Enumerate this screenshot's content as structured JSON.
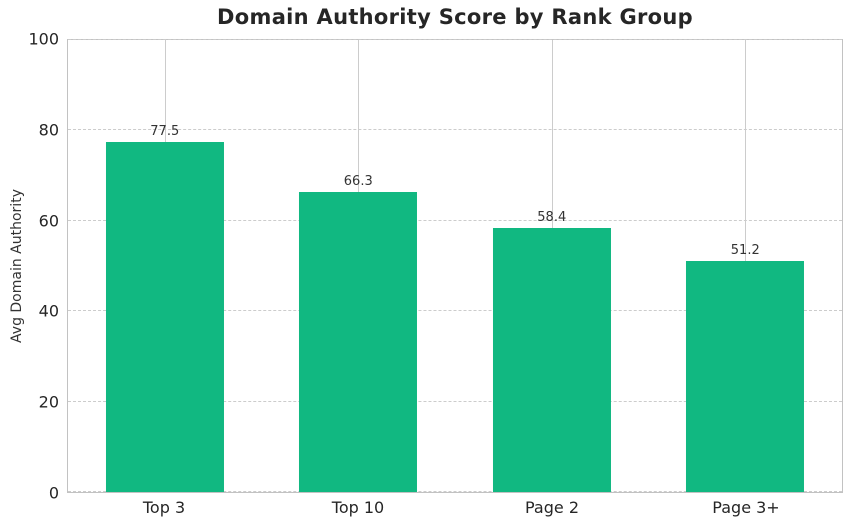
{
  "chart_data": {
    "type": "bar",
    "title": "Domain Authority Score by Rank Group",
    "xlabel": "",
    "ylabel": "Avg Domain Authority",
    "categories": [
      "Top 3",
      "Top 10",
      "Page 2",
      "Page 3+"
    ],
    "values": [
      77.5,
      66.3,
      58.4,
      51.2
    ],
    "value_labels": [
      "77.5",
      "66.3",
      "58.4",
      "51.2"
    ],
    "ylim": [
      0,
      100
    ],
    "yticks": [
      0,
      20,
      40,
      60,
      80,
      100
    ],
    "grid": {
      "horizontal_style": "dashed",
      "vertical_style": "solid",
      "vertical_at_category_centers": true
    },
    "legend": "none",
    "colors": {
      "bar": "#11b881",
      "grid": "#cccccc",
      "spine": "#c2c2c2",
      "title_text": "#262626",
      "tick_text": "#262626",
      "value_label_text": "#333333",
      "background": "#ffffff"
    }
  }
}
